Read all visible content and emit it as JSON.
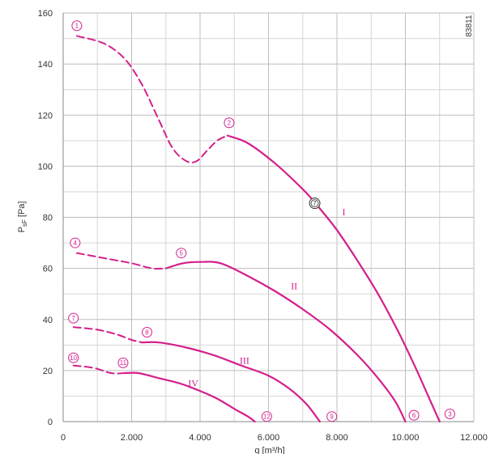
{
  "chart_data": {
    "type": "line",
    "code": "83811",
    "xlabel": "q  [m³/h]",
    "ylabel_main": "P",
    "ylabel_sub": "sF",
    "ylabel_unit": "[Pa]",
    "xlim": [
      0,
      12000
    ],
    "ylim": [
      0,
      160
    ],
    "x_ticks": [
      0,
      2000,
      4000,
      6000,
      8000,
      10000,
      12000
    ],
    "x_tick_labels": [
      "0",
      "2.000",
      "4.000",
      "6.000",
      "8.000",
      "10.000",
      "12.000"
    ],
    "y_ticks": [
      0,
      20,
      40,
      60,
      80,
      100,
      120,
      140,
      160
    ],
    "y_tick_labels": [
      "0",
      "20",
      "40",
      "60",
      "80",
      "100",
      "120",
      "140",
      "160"
    ],
    "grid": true,
    "color": "#d41f8c",
    "series": [
      {
        "name": "I",
        "label_at": [
          8200,
          82
        ],
        "dashed": [
          [
            400,
            151
          ],
          [
            1200,
            148
          ],
          [
            1800,
            142
          ],
          [
            2300,
            132
          ],
          [
            2800,
            118
          ],
          [
            3200,
            107
          ],
          [
            3600,
            102
          ],
          [
            3900,
            102
          ],
          [
            4200,
            106
          ],
          [
            4500,
            110
          ],
          [
            4800,
            112
          ]
        ],
        "solid": [
          [
            4800,
            112
          ],
          [
            5400,
            109
          ],
          [
            6200,
            101
          ],
          [
            7000,
            91
          ],
          [
            7400,
            85
          ],
          [
            8000,
            75
          ],
          [
            8600,
            63
          ],
          [
            9200,
            50
          ],
          [
            9800,
            35
          ],
          [
            10300,
            21
          ],
          [
            10700,
            9
          ],
          [
            11000,
            0
          ]
        ]
      },
      {
        "name": "II",
        "label_at": [
          6750,
          53
        ],
        "dashed": [
          [
            400,
            66
          ],
          [
            1200,
            64
          ],
          [
            2000,
            62
          ],
          [
            2600,
            60
          ],
          [
            3000,
            60
          ]
        ],
        "solid": [
          [
            3000,
            60
          ],
          [
            3500,
            62
          ],
          [
            4000,
            62.5
          ],
          [
            4600,
            62
          ],
          [
            5400,
            57
          ],
          [
            6200,
            51
          ],
          [
            7000,
            44
          ],
          [
            7800,
            36
          ],
          [
            8600,
            26
          ],
          [
            9200,
            17
          ],
          [
            9700,
            8
          ],
          [
            10000,
            0
          ]
        ]
      },
      {
        "name": "III",
        "label_at": [
          5300,
          24
        ],
        "dashed": [
          [
            300,
            37
          ],
          [
            1000,
            36
          ],
          [
            1600,
            34
          ],
          [
            2000,
            32
          ],
          [
            2300,
            31
          ]
        ],
        "solid": [
          [
            2300,
            31
          ],
          [
            2800,
            31
          ],
          [
            3600,
            29
          ],
          [
            4400,
            26
          ],
          [
            5200,
            22
          ],
          [
            6000,
            18
          ],
          [
            6600,
            13
          ],
          [
            7100,
            7
          ],
          [
            7500,
            0
          ]
        ]
      },
      {
        "name": "IV",
        "label_at": [
          3800,
          15
        ],
        "dashed": [
          [
            300,
            22
          ],
          [
            900,
            21
          ],
          [
            1400,
            19
          ],
          [
            1800,
            19
          ]
        ],
        "solid": [
          [
            1800,
            19
          ],
          [
            2200,
            19
          ],
          [
            2800,
            17
          ],
          [
            3400,
            15
          ],
          [
            4000,
            12
          ],
          [
            4500,
            9
          ],
          [
            5000,
            5
          ],
          [
            5400,
            2
          ],
          [
            5600,
            0
          ]
        ]
      }
    ],
    "markers": [
      {
        "label": "1",
        "at": [
          400,
          155
        ],
        "style": "circle"
      },
      {
        "label": "2",
        "at": [
          4850,
          117
        ],
        "style": "circle"
      },
      {
        "label": "3",
        "at": [
          11300,
          3
        ],
        "style": "circle"
      },
      {
        "label": "4",
        "at": [
          350,
          70
        ],
        "style": "circle"
      },
      {
        "label": "5",
        "at": [
          3450,
          66
        ],
        "style": "circle"
      },
      {
        "label": "6",
        "at": [
          10250,
          2.5
        ],
        "style": "circle"
      },
      {
        "label": "7",
        "at": [
          300,
          40.5
        ],
        "style": "circle"
      },
      {
        "label": "8",
        "at": [
          2450,
          35
        ],
        "style": "circle"
      },
      {
        "label": "9",
        "at": [
          7850,
          2
        ],
        "style": "circle"
      },
      {
        "label": "10",
        "at": [
          300,
          25
        ],
        "style": "circle"
      },
      {
        "label": "11",
        "at": [
          1750,
          23
        ],
        "style": "circle"
      },
      {
        "label": "12",
        "at": [
          5950,
          2
        ],
        "style": "circle"
      },
      {
        "label": "7",
        "at": [
          7350,
          85.5
        ],
        "style": "double-circle"
      }
    ]
  }
}
